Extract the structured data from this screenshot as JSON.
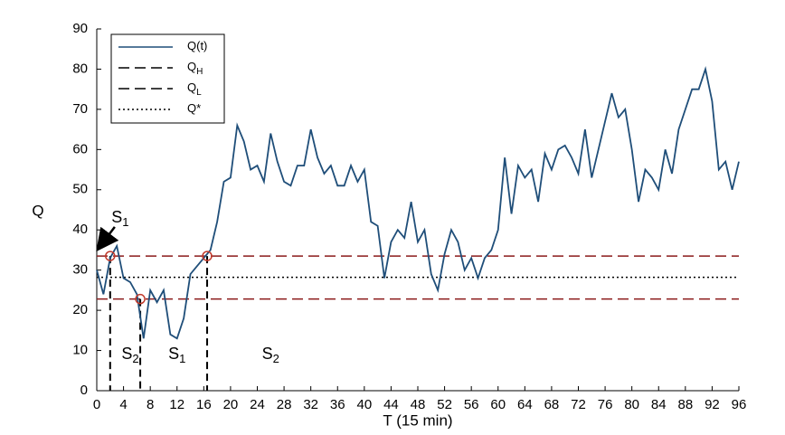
{
  "chart_data": {
    "type": "line",
    "xlabel": "T (15 min)",
    "ylabel": "Q",
    "x": [
      0,
      1,
      2,
      3,
      4,
      5,
      6,
      7,
      8,
      9,
      10,
      11,
      12,
      13,
      14,
      15,
      16,
      17,
      18,
      19,
      20,
      21,
      22,
      23,
      24,
      25,
      26,
      27,
      28,
      29,
      30,
      31,
      32,
      33,
      34,
      35,
      36,
      37,
      38,
      39,
      40,
      41,
      42,
      43,
      44,
      45,
      46,
      47,
      48,
      49,
      50,
      51,
      52,
      53,
      54,
      55,
      56,
      57,
      58,
      59,
      60,
      61,
      62,
      63,
      64,
      65,
      66,
      67,
      68,
      69,
      70,
      71,
      72,
      73,
      74,
      75,
      76,
      77,
      78,
      79,
      80,
      81,
      82,
      83,
      84,
      85,
      86,
      87,
      88,
      89,
      90,
      91,
      92,
      93,
      94,
      95,
      96
    ],
    "series": [
      {
        "name": "Q(t)",
        "color": "#1f4e79",
        "values": [
          30,
          24,
          33,
          36,
          28,
          27,
          24,
          13,
          25,
          22,
          25,
          14,
          13,
          18,
          29,
          31,
          33,
          35,
          42,
          52,
          53,
          66,
          62,
          55,
          56,
          52,
          64,
          57,
          52,
          51,
          56,
          56,
          65,
          58,
          54,
          56,
          51,
          51,
          56,
          52,
          55,
          42,
          41,
          28,
          37,
          40,
          38,
          47,
          37,
          40,
          29,
          25,
          34,
          40,
          37,
          30,
          33,
          28,
          33,
          35,
          40,
          58,
          44,
          56,
          53,
          55,
          47,
          59,
          55,
          60,
          61,
          58,
          54,
          65,
          53,
          60,
          67,
          74,
          68,
          70,
          60,
          47,
          55,
          53,
          50,
          60,
          54,
          65,
          70,
          75,
          75,
          80,
          72,
          55,
          57,
          50,
          57
        ]
      }
    ],
    "reference_lines": [
      {
        "name": "Q",
        "sub": "H",
        "value": 33.5,
        "color": "#8b1a1a",
        "style": "dashed"
      },
      {
        "name": "Q",
        "sub": "L",
        "value": 22.8,
        "color": "#8b1a1a",
        "style": "dashed"
      },
      {
        "name": "Q*",
        "value": 28.2,
        "color": "#000000",
        "style": "dotted"
      }
    ],
    "switch_points": {
      "x": [
        2,
        6.5,
        16.5
      ],
      "y": [
        33.5,
        22.8,
        33.5
      ],
      "color": "#c0392b"
    },
    "annotations": [
      {
        "text": "S",
        "sub": "1",
        "x": 3.5,
        "y": 43,
        "arrow": [
          0.3,
          35.5
        ]
      },
      {
        "text": "S",
        "sub": "2",
        "x": 5,
        "y": 9
      },
      {
        "text": "S",
        "sub": "1",
        "x": 12,
        "y": 9
      },
      {
        "text": "S",
        "sub": "2",
        "x": 26,
        "y": 9
      }
    ],
    "xlim": [
      0,
      96
    ],
    "ylim": [
      0,
      90
    ],
    "xticks": [
      0,
      4,
      8,
      12,
      16,
      20,
      24,
      28,
      32,
      36,
      40,
      44,
      48,
      52,
      56,
      60,
      64,
      68,
      72,
      76,
      80,
      84,
      88,
      92,
      96
    ],
    "yticks": [
      0,
      10,
      20,
      30,
      40,
      50,
      60,
      70,
      80,
      90
    ]
  }
}
